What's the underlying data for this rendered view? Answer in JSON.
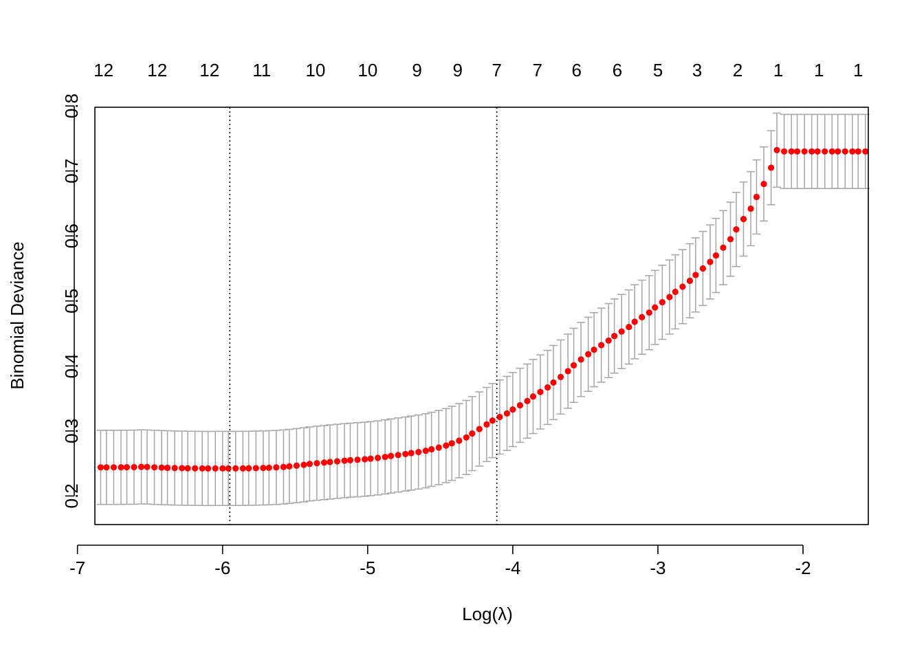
{
  "chart_data": {
    "type": "scatter",
    "xlabel": "Log(λ)",
    "ylabel": "Binomial Deviance",
    "xlim": [
      -6.88,
      -1.55
    ],
    "ylim": [
      0.156,
      0.798
    ],
    "x_ticks": [
      -7,
      -6,
      -5,
      -4,
      -3,
      -2
    ],
    "x_tick_labels": [
      "-7",
      "-6",
      "-5",
      "-4",
      "-3",
      "-2"
    ],
    "y_ticks": [
      0.2,
      0.3,
      0.4,
      0.5,
      0.6,
      0.7,
      0.8
    ],
    "y_tick_labels": [
      "0.2",
      "0.3",
      "0.4",
      "0.5",
      "0.6",
      "0.7",
      "0.8"
    ],
    "top_axis": {
      "x": [
        -6.82,
        -6.45,
        -6.09,
        -5.73,
        -5.36,
        -5.0,
        -4.66,
        -4.38,
        -4.11,
        -3.83,
        -3.56,
        -3.28,
        -3.0,
        -2.73,
        -2.45,
        -2.17,
        -1.89,
        -1.62
      ],
      "labels": [
        "12",
        "12",
        "12",
        "11",
        "10",
        "10",
        "9",
        "9",
        "7",
        "7",
        "6",
        "6",
        "5",
        "3",
        "2",
        "1",
        "1",
        "1"
      ]
    },
    "vlines": [
      {
        "x": -5.95
      },
      {
        "x": -4.11
      }
    ],
    "colors": {
      "points": "#ff0000",
      "error_bars": "#a9a9a9",
      "vlines": "#000000"
    },
    "series": [
      {
        "x": [
          -6.84,
          -6.8,
          -6.75,
          -6.7,
          -6.66,
          -6.61,
          -6.56,
          -6.52,
          -6.47,
          -6.42,
          -6.38,
          -6.33,
          -6.28,
          -6.24,
          -6.19,
          -6.14,
          -6.1,
          -6.05,
          -6.0,
          -5.96,
          -5.91,
          -5.86,
          -5.82,
          -5.77,
          -5.72,
          -5.68,
          -5.63,
          -5.58,
          -5.54,
          -5.49,
          -5.44,
          -5.4,
          -5.35,
          -5.3,
          -5.26,
          -5.21,
          -5.16,
          -5.12,
          -5.07,
          -5.02,
          -4.98,
          -4.93,
          -4.88,
          -4.84,
          -4.79,
          -4.74,
          -4.7,
          -4.65,
          -4.6,
          -4.56,
          -4.51,
          -4.46,
          -4.42,
          -4.37,
          -4.32,
          -4.28,
          -4.23,
          -4.18,
          -4.14,
          -4.09,
          -4.04,
          -4.0,
          -3.95,
          -3.9,
          -3.86,
          -3.81,
          -3.76,
          -3.72,
          -3.67,
          -3.62,
          -3.58,
          -3.53,
          -3.48,
          -3.44,
          -3.39,
          -3.34,
          -3.3,
          -3.25,
          -3.2,
          -3.16,
          -3.11,
          -3.06,
          -3.02,
          -2.97,
          -2.92,
          -2.88,
          -2.83,
          -2.78,
          -2.74,
          -2.69,
          -2.64,
          -2.6,
          -2.55,
          -2.5,
          -2.46,
          -2.41,
          -2.36,
          -2.32,
          -2.27,
          -2.22,
          -2.18,
          -2.13,
          -2.08,
          -2.04,
          -1.99,
          -1.94,
          -1.9,
          -1.85,
          -1.8,
          -1.76,
          -1.71,
          -1.66,
          -1.62,
          -1.57
        ],
        "y": [
          0.244,
          0.244,
          0.244,
          0.2441,
          0.2442,
          0.2443,
          0.2447,
          0.2446,
          0.244,
          0.2436,
          0.2433,
          0.243,
          0.2428,
          0.2426,
          0.2425,
          0.2424,
          0.2423,
          0.2424,
          0.2424,
          0.2424,
          0.2424,
          0.2425,
          0.2426,
          0.2428,
          0.2431,
          0.2434,
          0.2439,
          0.2446,
          0.2455,
          0.2466,
          0.2479,
          0.2493,
          0.2504,
          0.2513,
          0.2523,
          0.2533,
          0.2542,
          0.255,
          0.2557,
          0.2565,
          0.2574,
          0.2586,
          0.26,
          0.2615,
          0.263,
          0.2645,
          0.266,
          0.2676,
          0.2695,
          0.2718,
          0.2745,
          0.2775,
          0.281,
          0.285,
          0.29,
          0.296,
          0.303,
          0.31,
          0.316,
          0.3215,
          0.327,
          0.333,
          0.3395,
          0.346,
          0.353,
          0.36,
          0.367,
          0.3745,
          0.383,
          0.392,
          0.401,
          0.41,
          0.418,
          0.425,
          0.432,
          0.439,
          0.446,
          0.453,
          0.46,
          0.468,
          0.475,
          0.482,
          0.49,
          0.498,
          0.506,
          0.514,
          0.522,
          0.531,
          0.54,
          0.55,
          0.56,
          0.57,
          0.582,
          0.595,
          0.61,
          0.626,
          0.642,
          0.66,
          0.68,
          0.705,
          0.732,
          0.73,
          0.73,
          0.73,
          0.73,
          0.73,
          0.73,
          0.73,
          0.73,
          0.73,
          0.73,
          0.73,
          0.73,
          0.73
        ],
        "error": [
          0.057
        ]
      }
    ]
  }
}
